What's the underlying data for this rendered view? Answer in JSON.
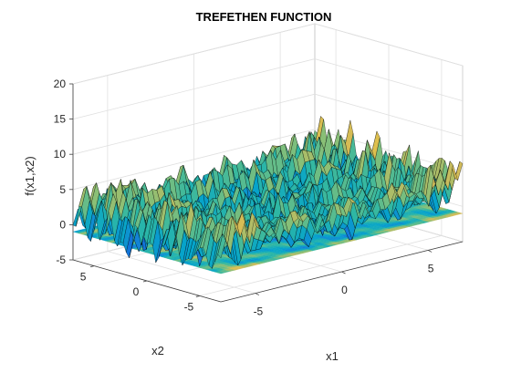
{
  "chart_data": {
    "type": "surface",
    "title": "TREFETHEN FUNCTION",
    "xlabel": "x1",
    "ylabel": "x2",
    "zlabel": "f(x1,x2)",
    "x_range": [
      -7,
      7
    ],
    "y_range": [
      -7,
      7
    ],
    "z_range": [
      -5,
      20
    ],
    "x_ticks": [
      -5,
      0,
      5
    ],
    "y_ticks": [
      -5,
      0,
      5
    ],
    "z_ticks": [
      -5,
      0,
      5,
      10,
      15,
      20
    ],
    "x_tick_labels": [
      "-5",
      "0",
      "5"
    ],
    "y_tick_labels": [
      "-5",
      "0",
      "5"
    ],
    "z_tick_labels": [
      "-5",
      "0",
      "5",
      "10",
      "15",
      "20"
    ],
    "contour_plane_z": -1,
    "colormap": [
      "#352a87",
      "#0f5cdd",
      "#1481d6",
      "#06a4ca",
      "#2eb7a4",
      "#87bf77",
      "#d1bb59",
      "#fec832",
      "#f9fb0e"
    ],
    "grid": true,
    "grid_color": "#e0e0e0",
    "edge_color": "#000000"
  }
}
